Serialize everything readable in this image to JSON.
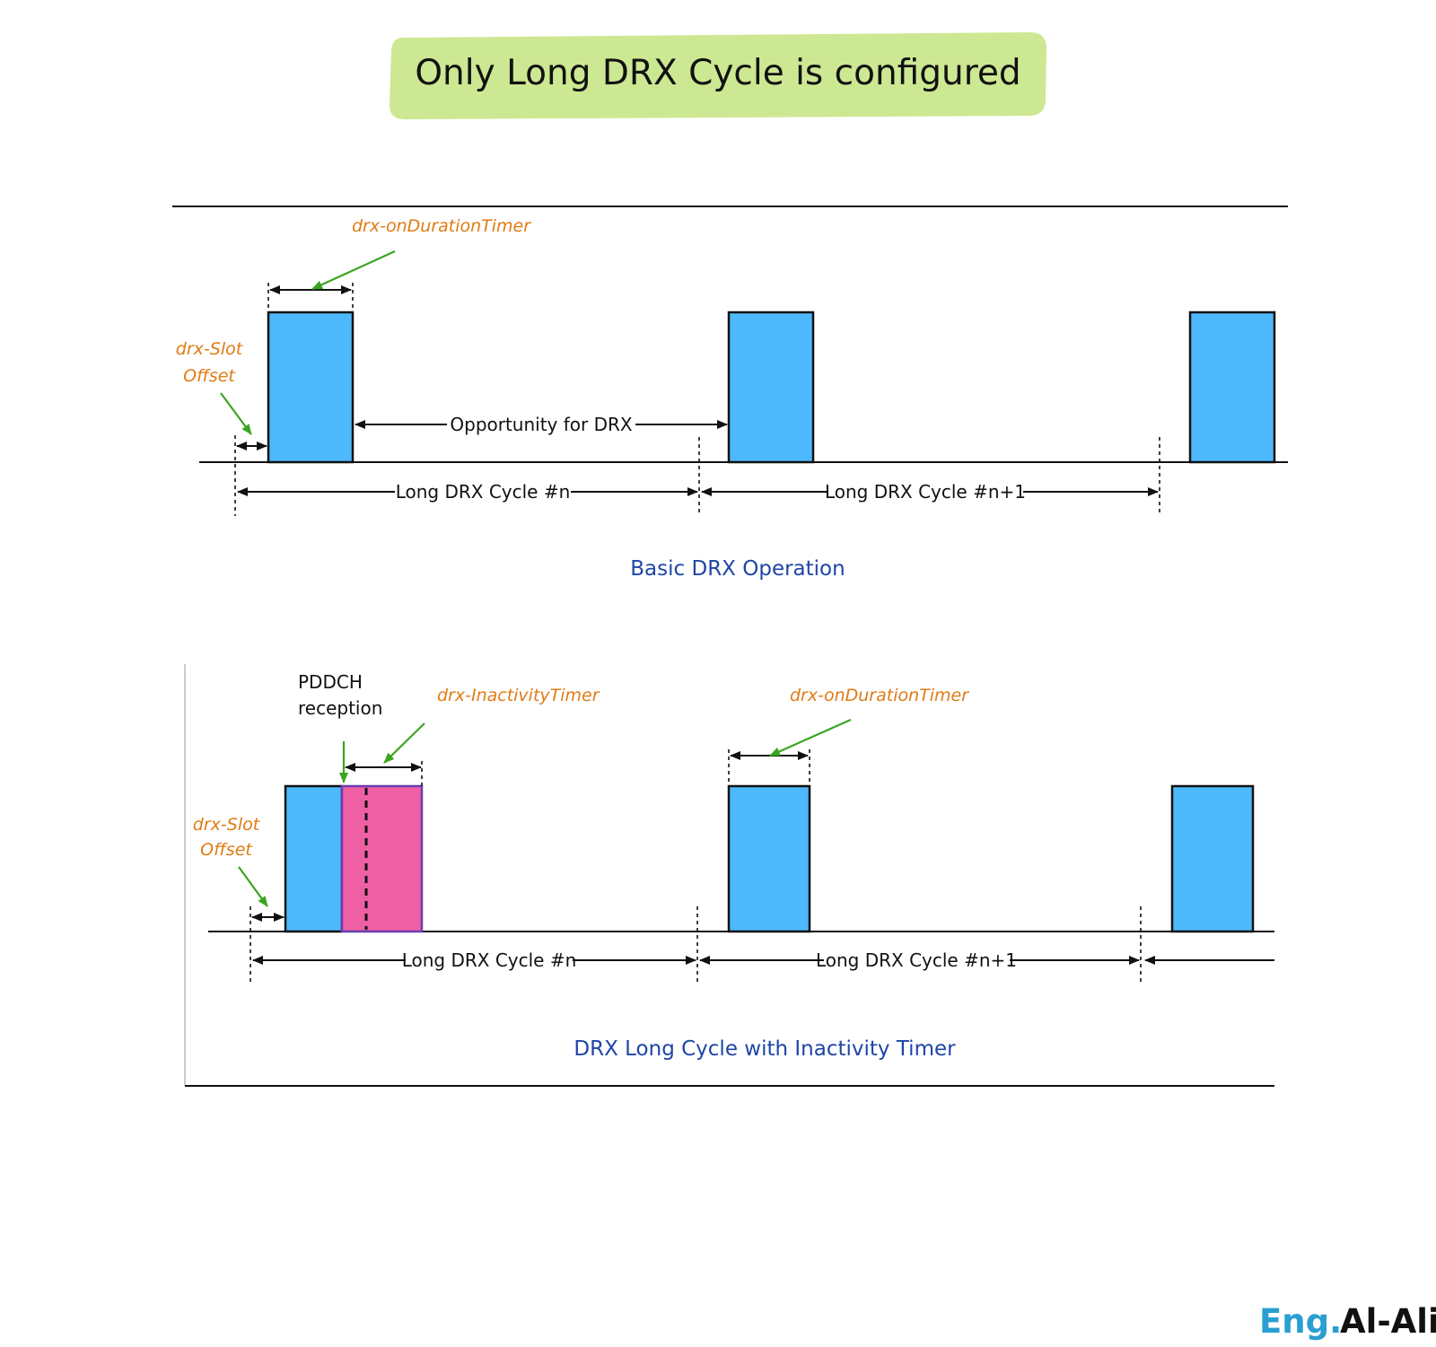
{
  "title": "Only Long DRX Cycle is configured",
  "colors": {
    "title_highlight": "#cde892",
    "on_duration_block": "#4db8fb",
    "inactivity_block": "#ee5fa4",
    "label_orange": "#e07b14",
    "caption_blue": "#1f45a8",
    "pointer_green": "#3aa520"
  },
  "diagram1": {
    "on_duration_label": "drx-onDurationTimer",
    "slot_offset_label_line1": "drx-Slot",
    "slot_offset_label_line2": "Offset",
    "opportunity_label": "Opportunity for DRX",
    "cycle_n_label": "Long DRX Cycle #n",
    "cycle_n1_label": "Long DRX Cycle #n+1",
    "caption": "Basic DRX Operation"
  },
  "diagram2": {
    "pdcch_label_line1": "PDDCH",
    "pdcch_label_line2": "reception",
    "inactivity_label": "drx-InactivityTimer",
    "on_duration_label": "drx-onDurationTimer",
    "slot_offset_label_line1": "drx-Slot",
    "slot_offset_label_line2": "Offset",
    "cycle_n_label": "Long DRX Cycle #n",
    "cycle_n1_label": "Long DRX Cycle #n+1",
    "caption": "DRX Long Cycle with Inactivity Timer"
  },
  "brand": {
    "part1": "Eng.",
    "part2": "Al-Ali"
  }
}
